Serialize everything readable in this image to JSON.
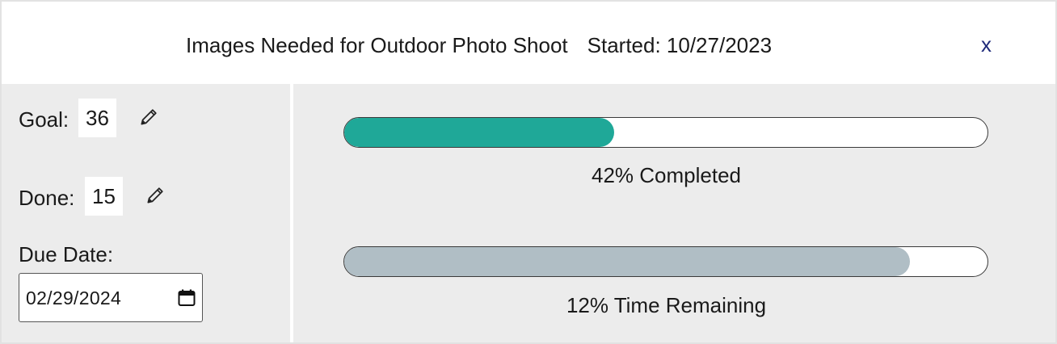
{
  "header": {
    "title": "Images Needed for Outdoor Photo Shoot",
    "started": "Started: 10/27/2023",
    "close_label": "x"
  },
  "goal": {
    "label": "Goal:",
    "value": "36"
  },
  "done": {
    "label": "Done:",
    "value": "15"
  },
  "due": {
    "label": "Due Date:",
    "value": "02/29/2024"
  },
  "progress": {
    "completed": {
      "fraction": 0.42,
      "label": "42% Completed",
      "color": "#1fa898"
    },
    "time": {
      "fraction": 0.88,
      "label": "12% Time Remaining",
      "color": "#b0bec5"
    }
  },
  "icons": {
    "edit": "pencil-icon",
    "calendar": "calendar-icon"
  }
}
